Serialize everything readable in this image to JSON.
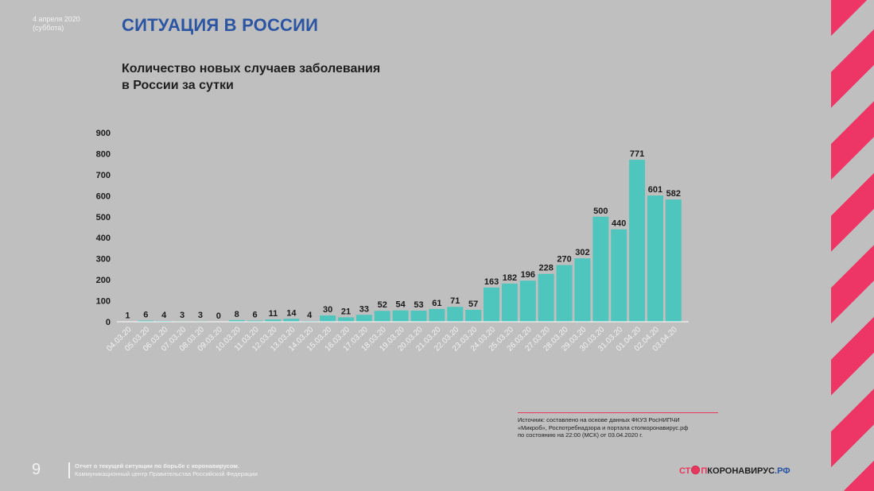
{
  "date": {
    "line1": "4 апреля 2020",
    "line2": "(суббота)"
  },
  "header": {
    "title": "СИТУАЦИЯ В РОССИИ"
  },
  "subtitle": {
    "line1": "Количество новых случаев заболевания",
    "line2": "в России за сутки"
  },
  "chart_data": {
    "type": "bar",
    "categories": [
      "04.03.20",
      "05.03.20",
      "06.03.20",
      "07.03.20",
      "08.03.20",
      "09.03.20",
      "10.03.20",
      "11.03.20",
      "12.03.20",
      "13.03.20",
      "14.03.20",
      "15.03.20",
      "16.03.20",
      "17.03.20",
      "18.03.20",
      "19.03.20",
      "20.03.20",
      "21.03.20",
      "22.03.20",
      "23.03.20",
      "24.03.20",
      "25.03.20",
      "26.03.20",
      "27.03.20",
      "28.03.20",
      "29.03.20",
      "30.03.20",
      "31.03.20",
      "01.04.20",
      "02.04.20",
      "03.04.20"
    ],
    "values": [
      1,
      6,
      4,
      3,
      3,
      0,
      8,
      6,
      11,
      14,
      4,
      30,
      21,
      33,
      52,
      54,
      53,
      61,
      71,
      57,
      163,
      182,
      196,
      228,
      270,
      302,
      500,
      440,
      771,
      601,
      582
    ],
    "y_ticks": [
      "0",
      "100",
      "200",
      "300",
      "400",
      "500",
      "600",
      "700",
      "800",
      "900"
    ],
    "ylim": [
      0,
      900
    ],
    "grid": false,
    "bar_color": "#4fc6bd"
  },
  "source": {
    "line1": "Источник: составлено на основе данных ФКУЗ РосНИПЧИ",
    "line2": "«Микроб», Роспотребнадзора и портала стопкоронавирус.рф",
    "line3": "по состоянию на 22:00 (МСК) от 03.04.2020 г."
  },
  "footer": {
    "page_number": "9",
    "line1": "Отчет о текущей ситуации по борьбе с коронавирусом.",
    "line2": "Коммуникационный центр Правительства Российской Федерации"
  },
  "logo": {
    "part1": "СТ",
    "part2": "П",
    "part3": "КОРОНАВИРУС",
    "part4": ".РФ"
  }
}
